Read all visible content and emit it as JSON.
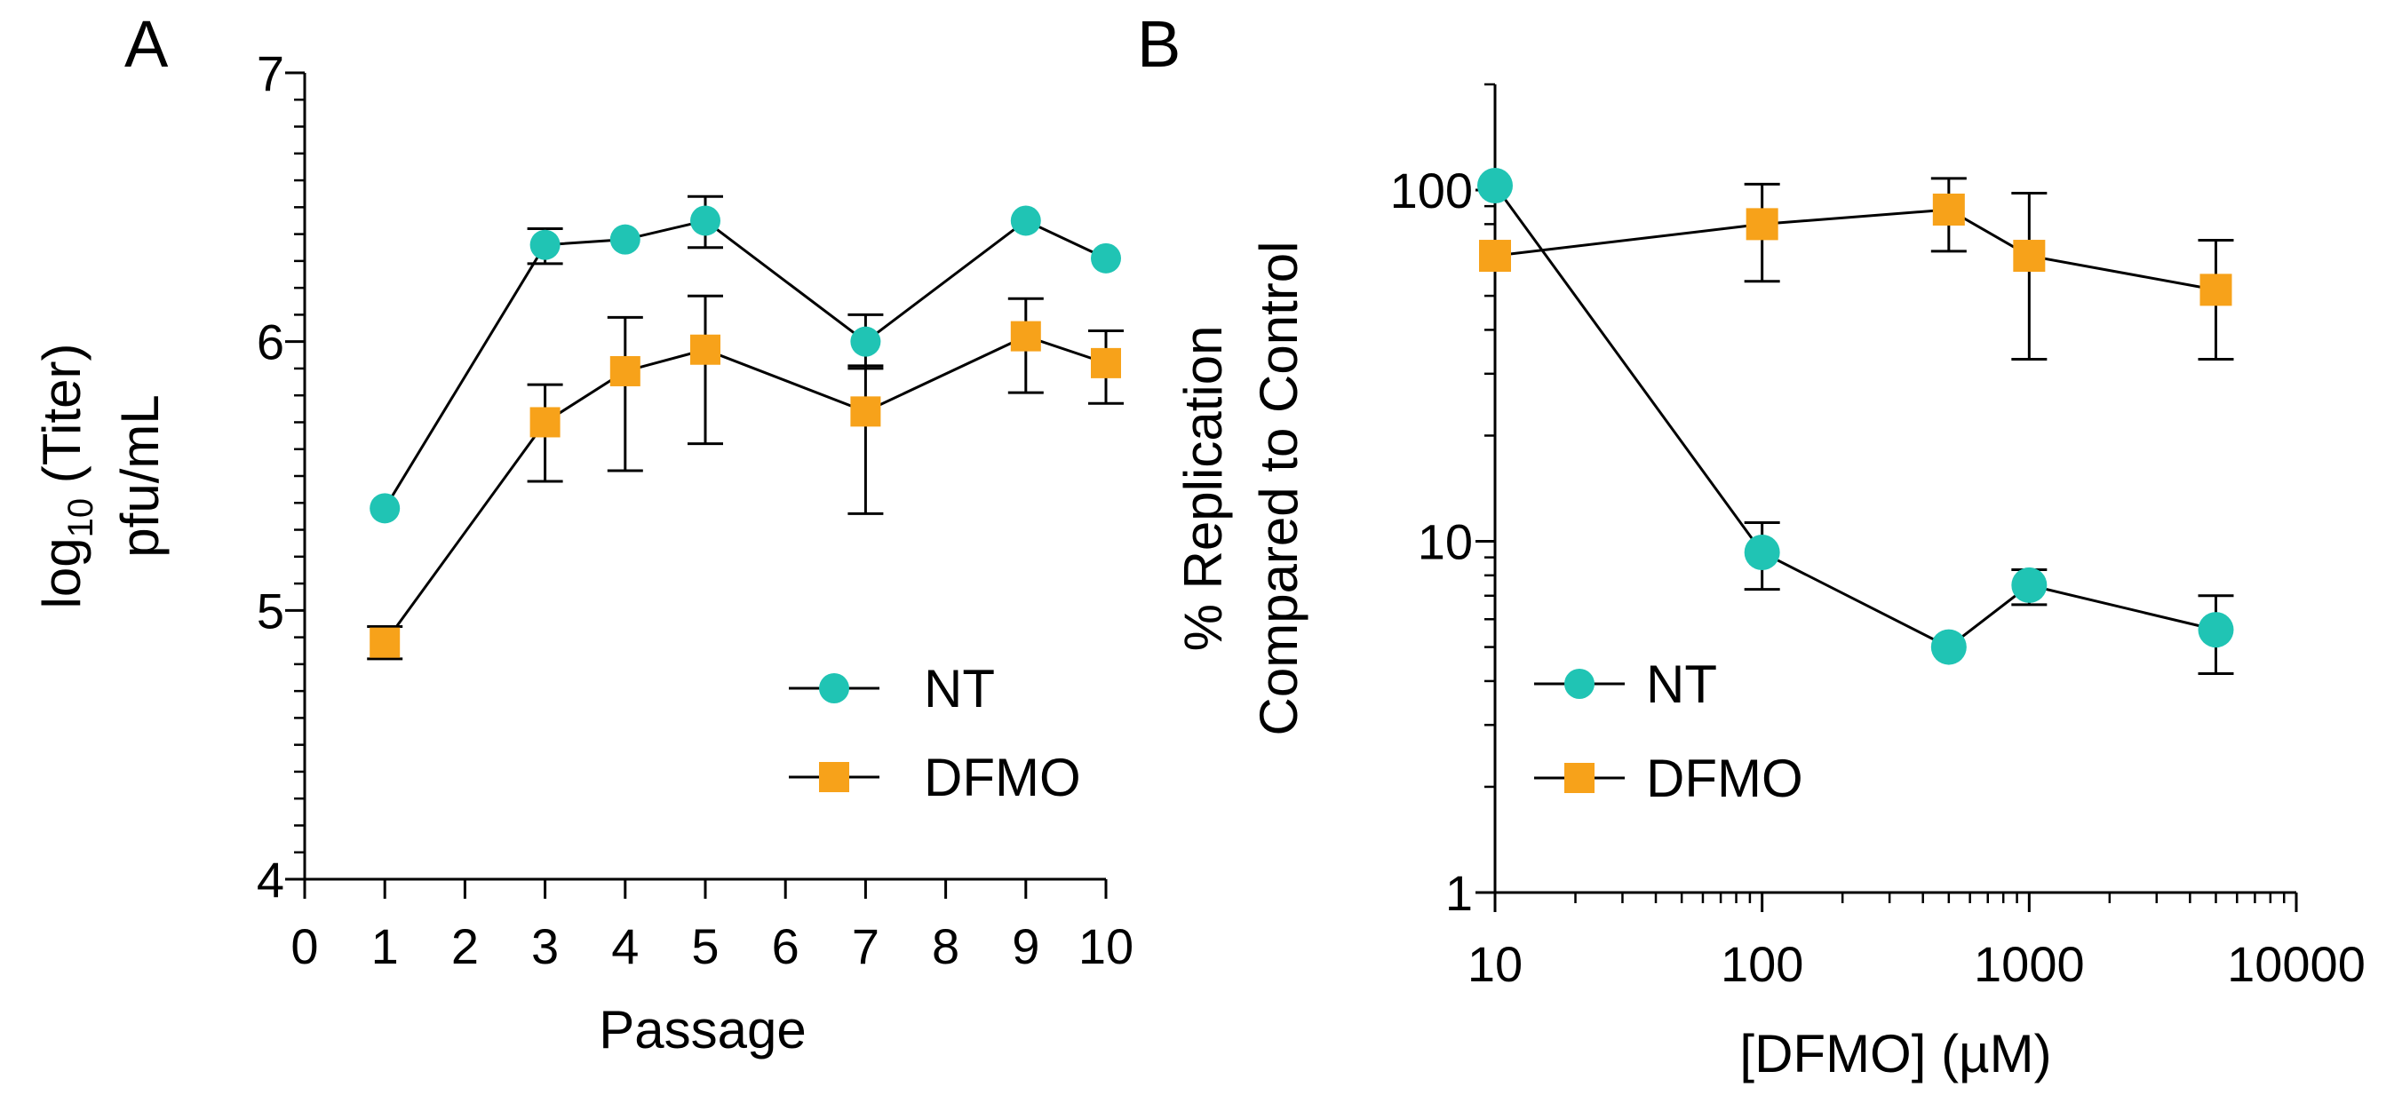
{
  "chart_data": [
    {
      "panel_label": "A",
      "type": "line",
      "xlabel": "Passage",
      "ylabel_main": "log",
      "ylabel_sub": "10",
      "ylabel_rest": " (Titer)",
      "ylabel_line2": "pfu/mL",
      "xlim": [
        0,
        10
      ],
      "ylim": [
        4,
        7
      ],
      "x_scale": "linear",
      "y_scale": "linear",
      "x_ticks": [
        0,
        1,
        2,
        3,
        4,
        5,
        6,
        7,
        8,
        9,
        10
      ],
      "x_tick_labels": [
        "0",
        "1",
        "2",
        "3",
        "4",
        "5",
        "6",
        "7",
        "8",
        "9",
        "10"
      ],
      "y_ticks": [
        4,
        5,
        6,
        7
      ],
      "y_tick_labels": [
        "4",
        "5",
        "6",
        "7"
      ],
      "y_minor_step": 0.1,
      "legend_position": "bottom-right",
      "series": [
        {
          "name": "NT",
          "marker": "circle",
          "color": "#20C4B4",
          "x": [
            1,
            3,
            4,
            5,
            7,
            9,
            10
          ],
          "values": [
            5.38,
            6.36,
            6.38,
            6.45,
            6.0,
            6.45,
            6.31
          ],
          "err_low": [
            5.38,
            6.29,
            6.38,
            6.35,
            5.9,
            6.45,
            6.31
          ],
          "err_high": [
            5.38,
            6.42,
            6.38,
            6.54,
            6.1,
            6.45,
            6.31
          ]
        },
        {
          "name": "DFMO",
          "marker": "square",
          "color": "#F7A21A",
          "x": [
            1,
            3,
            4,
            5,
            7,
            9,
            10
          ],
          "values": [
            4.88,
            5.7,
            5.89,
            5.97,
            5.74,
            6.02,
            5.92
          ],
          "err_low": [
            4.82,
            5.48,
            5.52,
            5.62,
            5.36,
            5.81,
            5.77
          ],
          "err_high": [
            4.94,
            5.84,
            6.09,
            6.17,
            5.91,
            6.16,
            6.04
          ]
        }
      ]
    },
    {
      "panel_label": "B",
      "type": "line",
      "xlabel": "[DFMO] (µM)",
      "ylabel_line1": "% Replication",
      "ylabel_line2": "Compared to Control",
      "xlim": [
        10,
        10000
      ],
      "ylim": [
        1,
        200
      ],
      "x_scale": "log",
      "y_scale": "log",
      "x_ticks": [
        10,
        100,
        1000,
        10000
      ],
      "x_tick_labels": [
        "10",
        "100",
        "1000",
        "10000"
      ],
      "y_ticks": [
        1,
        10,
        100
      ],
      "y_tick_labels": [
        "1",
        "10",
        "100"
      ],
      "legend_position": "bottom-left",
      "series": [
        {
          "name": "NT",
          "marker": "circle",
          "color": "#20C4B4",
          "x": [
            10,
            100,
            500,
            1000,
            5000
          ],
          "values": [
            103,
            9.3,
            5.0,
            7.5,
            5.6
          ],
          "err_low": [
            103,
            7.3,
            5.0,
            6.6,
            4.2
          ],
          "err_high": [
            103,
            11.3,
            5.0,
            8.3,
            7.0
          ]
        },
        {
          "name": "DFMO",
          "marker": "square",
          "color": "#F7A21A",
          "x": [
            10,
            100,
            500,
            1000,
            5000
          ],
          "values": [
            65,
            80,
            88,
            65,
            52
          ],
          "err_low": [
            65,
            55,
            67,
            33,
            33
          ],
          "err_high": [
            65,
            104,
            108,
            98,
            72
          ]
        }
      ]
    }
  ]
}
